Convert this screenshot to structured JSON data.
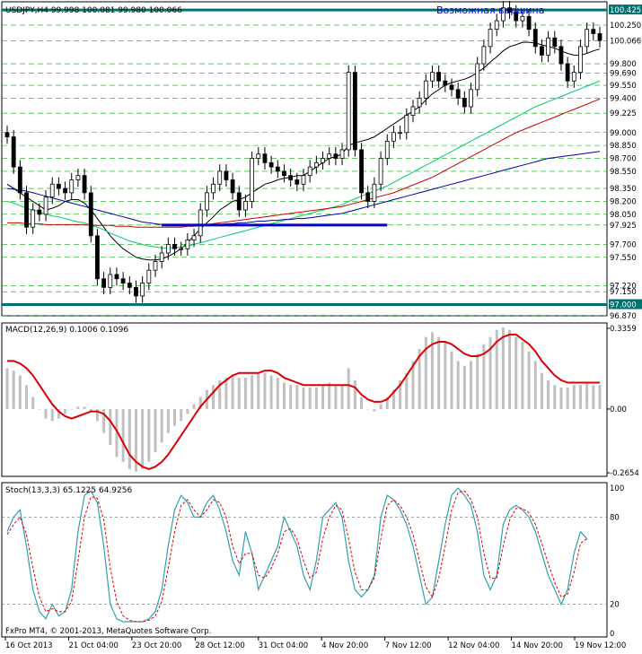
{
  "header": {
    "symbol_line": "USDJPY,H4  99.998 100.081 99.980 100.066",
    "annotation": "Возможная вершина",
    "copyright": "FxPro MT4, © 2001-2013, MetaQuotes Software Corp."
  },
  "colors": {
    "bull": "#000000",
    "bear": "#000000",
    "ma_fast": "#000000",
    "ma_green": "#00cc66",
    "ma_red": "#cc0000",
    "ma_blue": "#0000aa",
    "level_line": "#007070",
    "grid": "#00aa00",
    "support": "#0000cc",
    "macd_hist": "#c0c0c0",
    "macd_signal": "#dd0000",
    "stoch_main": "#30a0b0",
    "stoch_signal": "#dd0000"
  },
  "chart_data": [
    {
      "type": "candlestick",
      "title": "USDJPY,H4",
      "ylim": [
        96.87,
        100.52
      ],
      "price_labels": [
        "100.425",
        "100.250",
        "100.066",
        "99.800",
        "99.690",
        "99.550",
        "99.400",
        "99.225",
        "99.000",
        "98.850",
        "98.700",
        "98.550",
        "98.350",
        "98.200",
        "98.050",
        "97.925",
        "97.700",
        "97.550",
        "97.220",
        "97.150",
        "97.000",
        "96.870"
      ],
      "highlighted_labels": [
        "100.425",
        "100.066",
        "97.000"
      ],
      "horizontal_levels": [
        100.425,
        97.0
      ],
      "support_line": {
        "from": 97.925,
        "to": 97.925
      },
      "series": [
        {
          "name": "Close",
          "values": [
            98.95,
            98.6,
            98.3,
            97.9,
            98.1,
            98.05,
            98.25,
            98.4,
            98.35,
            98.3,
            98.45,
            98.5,
            98.3,
            97.8,
            97.3,
            97.2,
            97.35,
            97.3,
            97.25,
            97.2,
            97.1,
            97.25,
            97.4,
            97.5,
            97.6,
            97.7,
            97.65,
            97.65,
            97.75,
            97.8,
            98.1,
            98.3,
            98.4,
            98.55,
            98.45,
            98.3,
            98.1,
            98.2,
            98.7,
            98.75,
            98.65,
            98.6,
            98.55,
            98.5,
            98.45,
            98.4,
            98.5,
            98.6,
            98.65,
            98.7,
            98.75,
            98.7,
            98.8,
            99.7,
            98.8,
            98.3,
            98.2,
            98.4,
            98.7,
            98.9,
            99.0,
            99.0,
            99.2,
            99.3,
            99.4,
            99.6,
            99.7,
            99.6,
            99.55,
            99.5,
            99.4,
            99.3,
            99.5,
            99.8,
            100.0,
            100.2,
            100.3,
            100.45,
            100.4,
            100.3,
            100.35,
            100.2,
            100.0,
            99.9,
            100.1,
            100.0,
            99.8,
            99.6,
            99.7,
            100.0,
            100.2,
            100.15,
            100.07
          ]
        }
      ],
      "moving_averages": [
        {
          "name": "MA fast",
          "values": [
            98.4,
            98.35,
            98.3,
            98.25,
            98.2,
            98.15,
            98.1,
            98.12,
            98.15,
            98.2,
            98.22,
            98.22,
            98.18,
            98.1,
            98.0,
            97.9,
            97.8,
            97.72,
            97.65,
            97.6,
            97.55,
            97.53,
            97.52,
            97.52,
            97.53,
            97.56,
            97.6,
            97.65,
            97.72,
            97.8,
            97.88,
            97.95,
            98.02,
            98.1,
            98.15,
            98.2,
            98.22,
            98.25,
            98.3,
            98.35,
            98.4,
            98.42,
            98.45,
            98.47,
            98.48,
            98.5,
            98.5,
            98.55,
            98.6,
            98.65,
            98.7,
            98.72,
            98.75,
            98.85,
            98.88,
            98.9,
            98.92,
            98.95,
            99.0,
            99.05,
            99.1,
            99.15,
            99.2,
            99.25,
            99.3,
            99.38,
            99.45,
            99.5,
            99.55,
            99.58,
            99.6,
            99.62,
            99.65,
            99.7,
            99.75,
            99.82,
            99.88,
            99.95,
            100.0,
            100.02,
            100.05,
            100.05,
            100.04,
            100.02,
            100.0,
            99.98,
            99.95,
            99.92,
            99.9,
            99.9,
            99.92,
            99.95,
            99.97
          ]
        },
        {
          "name": "MA green",
          "values": [
            98.2,
            98.18,
            98.15,
            98.12,
            98.1,
            98.08,
            98.05,
            98.03,
            98.02,
            98.0,
            97.98,
            97.96,
            97.95,
            97.92,
            97.9,
            97.87,
            97.83,
            97.8,
            97.77,
            97.74,
            97.72,
            97.7,
            97.68,
            97.67,
            97.66,
            97.66,
            97.66,
            97.67,
            97.68,
            97.7,
            97.72,
            97.74,
            97.76,
            97.78,
            97.8,
            97.82,
            97.84,
            97.86,
            97.88,
            97.9,
            97.92,
            97.94,
            97.96,
            97.98,
            98.0,
            98.02,
            98.04,
            98.06,
            98.08,
            98.1,
            98.12,
            98.14,
            98.16,
            98.2,
            98.23,
            98.26,
            98.29,
            98.32,
            98.35,
            98.38,
            98.42,
            98.46,
            98.5,
            98.54,
            98.58,
            98.62,
            98.66,
            98.7,
            98.74,
            98.78,
            98.82,
            98.86,
            98.9,
            98.94,
            98.98,
            99.02,
            99.06,
            99.1,
            99.14,
            99.18,
            99.22,
            99.26,
            99.3,
            99.33,
            99.36,
            99.39,
            99.42,
            99.45,
            99.48,
            99.51,
            99.54,
            99.57,
            99.6
          ]
        },
        {
          "name": "MA red",
          "values": [
            97.95,
            97.95,
            97.95,
            97.94,
            97.94,
            97.94,
            97.93,
            97.93,
            97.93,
            97.93,
            97.93,
            97.93,
            97.93,
            97.92,
            97.92,
            97.92,
            97.92,
            97.91,
            97.91,
            97.91,
            97.9,
            97.9,
            97.9,
            97.9,
            97.9,
            97.9,
            97.9,
            97.9,
            97.91,
            97.91,
            97.92,
            97.93,
            97.94,
            97.95,
            97.96,
            97.97,
            97.98,
            97.99,
            98.0,
            98.01,
            98.02,
            98.03,
            98.04,
            98.05,
            98.06,
            98.07,
            98.08,
            98.09,
            98.1,
            98.11,
            98.12,
            98.13,
            98.14,
            98.16,
            98.18,
            98.2,
            98.22,
            98.24,
            98.26,
            98.28,
            98.3,
            98.33,
            98.36,
            98.39,
            98.42,
            98.45,
            98.48,
            98.52,
            98.56,
            98.6,
            98.64,
            98.68,
            98.72,
            98.76,
            98.8,
            98.84,
            98.88,
            98.92,
            98.96,
            99.0,
            99.03,
            99.06,
            99.09,
            99.12,
            99.15,
            99.18,
            99.21,
            99.24,
            99.27,
            99.3,
            99.33,
            99.36,
            99.39
          ]
        },
        {
          "name": "MA blue",
          "values": [
            98.35,
            98.34,
            98.33,
            98.32,
            98.3,
            98.28,
            98.26,
            98.24,
            98.22,
            98.2,
            98.18,
            98.16,
            98.14,
            98.12,
            98.1,
            98.08,
            98.06,
            98.04,
            98.02,
            98.0,
            97.98,
            97.96,
            97.95,
            97.94,
            97.93,
            97.92,
            97.92,
            97.92,
            97.92,
            97.92,
            97.92,
            97.92,
            97.93,
            97.93,
            97.94,
            97.94,
            97.95,
            97.95,
            97.96,
            97.97,
            97.97,
            97.98,
            97.98,
            97.99,
            97.99,
            98.0,
            98.0,
            98.01,
            98.02,
            98.03,
            98.04,
            98.05,
            98.06,
            98.08,
            98.1,
            98.12,
            98.14,
            98.16,
            98.18,
            98.2,
            98.22,
            98.24,
            98.26,
            98.28,
            98.3,
            98.32,
            98.34,
            98.36,
            98.38,
            98.4,
            98.42,
            98.44,
            98.46,
            98.48,
            98.5,
            98.52,
            98.54,
            98.56,
            98.58,
            98.6,
            98.62,
            98.64,
            98.66,
            98.68,
            98.7,
            98.71,
            98.72,
            98.73,
            98.74,
            98.75,
            98.76,
            98.77,
            98.78
          ]
        }
      ]
    },
    {
      "type": "bar",
      "title": "MACD(12,26,9) 0.1006 0.1096",
      "ylim": [
        -0.2654,
        0.3359
      ],
      "tick_labels": [
        "0.3359",
        "0.00",
        "-0.2654"
      ],
      "series": [
        {
          "name": "MACD",
          "values": [
            0.17,
            0.16,
            0.14,
            0.1,
            0.05,
            0.0,
            -0.04,
            -0.05,
            -0.04,
            -0.02,
            0.0,
            0.01,
            0.01,
            -0.01,
            -0.05,
            -0.1,
            -0.15,
            -0.2,
            -0.22,
            -0.25,
            -0.26,
            -0.25,
            -0.22,
            -0.18,
            -0.14,
            -0.1,
            -0.07,
            -0.05,
            -0.02,
            0.02,
            0.05,
            0.08,
            0.1,
            0.12,
            0.13,
            0.14,
            0.13,
            0.13,
            0.14,
            0.15,
            0.15,
            0.14,
            0.13,
            0.11,
            0.1,
            0.1,
            0.09,
            0.09,
            0.09,
            0.1,
            0.11,
            0.1,
            0.1,
            0.17,
            0.12,
            0.05,
            0.0,
            -0.01,
            0.02,
            0.05,
            0.08,
            0.12,
            0.15,
            0.2,
            0.25,
            0.3,
            0.32,
            0.3,
            0.28,
            0.24,
            0.2,
            0.18,
            0.2,
            0.23,
            0.27,
            0.3,
            0.33,
            0.34,
            0.33,
            0.3,
            0.28,
            0.24,
            0.2,
            0.15,
            0.12,
            0.1,
            0.09,
            0.09,
            0.1,
            0.1,
            0.11,
            0.1,
            0.1
          ]
        },
        {
          "name": "Signal",
          "values": [
            0.2,
            0.2,
            0.19,
            0.17,
            0.14,
            0.1,
            0.06,
            0.02,
            -0.01,
            -0.03,
            -0.04,
            -0.03,
            -0.02,
            -0.01,
            -0.01,
            -0.02,
            -0.05,
            -0.09,
            -0.14,
            -0.19,
            -0.22,
            -0.24,
            -0.25,
            -0.24,
            -0.22,
            -0.19,
            -0.15,
            -0.11,
            -0.07,
            -0.03,
            0.01,
            0.04,
            0.07,
            0.1,
            0.12,
            0.14,
            0.15,
            0.15,
            0.15,
            0.15,
            0.16,
            0.16,
            0.15,
            0.13,
            0.12,
            0.11,
            0.1,
            0.1,
            0.1,
            0.1,
            0.1,
            0.1,
            0.1,
            0.1,
            0.09,
            0.06,
            0.04,
            0.03,
            0.03,
            0.04,
            0.07,
            0.1,
            0.14,
            0.18,
            0.22,
            0.25,
            0.27,
            0.28,
            0.28,
            0.27,
            0.25,
            0.23,
            0.22,
            0.22,
            0.23,
            0.25,
            0.28,
            0.3,
            0.31,
            0.31,
            0.29,
            0.27,
            0.24,
            0.2,
            0.17,
            0.14,
            0.12,
            0.11,
            0.11,
            0.11,
            0.11,
            0.11,
            0.11
          ]
        }
      ]
    },
    {
      "type": "line",
      "title": "Stoch(13,3,3) 65.1225 64.9256",
      "ylim": [
        0,
        100
      ],
      "tick_labels": [
        "100",
        "80",
        "20",
        "0"
      ],
      "x_tick_labels": [
        "16 Oct 2013",
        "21 Oct 04:00",
        "23 Oct 20:00",
        "28 Oct 12:00",
        "31 Oct 04:00",
        "4 Nov 20:00",
        "7 Nov 12:00",
        "12 Nov 04:00",
        "14 Nov 20:00",
        "19 Nov 12:00"
      ],
      "series": [
        {
          "name": "Main",
          "values": [
            70,
            80,
            85,
            60,
            30,
            15,
            10,
            20,
            12,
            15,
            30,
            70,
            95,
            98,
            90,
            60,
            20,
            10,
            8,
            8,
            8,
            8,
            10,
            15,
            30,
            60,
            85,
            95,
            90,
            80,
            80,
            90,
            95,
            85,
            70,
            50,
            40,
            70,
            55,
            30,
            40,
            50,
            60,
            80,
            70,
            60,
            40,
            30,
            50,
            80,
            85,
            90,
            80,
            50,
            30,
            25,
            30,
            40,
            80,
            95,
            92,
            85,
            75,
            60,
            40,
            20,
            25,
            50,
            75,
            95,
            100,
            95,
            88,
            70,
            40,
            30,
            40,
            75,
            85,
            88,
            85,
            80,
            70,
            55,
            40,
            30,
            20,
            30,
            55,
            70,
            65
          ]
        },
        {
          "name": "Signal",
          "values": [
            68,
            75,
            80,
            68,
            45,
            25,
            15,
            17,
            15,
            15,
            22,
            50,
            80,
            94,
            93,
            78,
            45,
            22,
            12,
            9,
            8,
            8,
            9,
            12,
            22,
            45,
            70,
            88,
            92,
            85,
            80,
            85,
            92,
            90,
            80,
            60,
            48,
            55,
            55,
            40,
            38,
            45,
            55,
            70,
            72,
            65,
            50,
            38,
            42,
            65,
            80,
            88,
            85,
            65,
            42,
            30,
            30,
            38,
            65,
            88,
            92,
            88,
            80,
            68,
            50,
            32,
            25,
            38,
            60,
            85,
            97,
            98,
            92,
            80,
            55,
            38,
            38,
            60,
            78,
            86,
            86,
            83,
            75,
            62,
            48,
            35,
            25,
            27,
            42,
            62,
            65
          ]
        }
      ]
    }
  ]
}
